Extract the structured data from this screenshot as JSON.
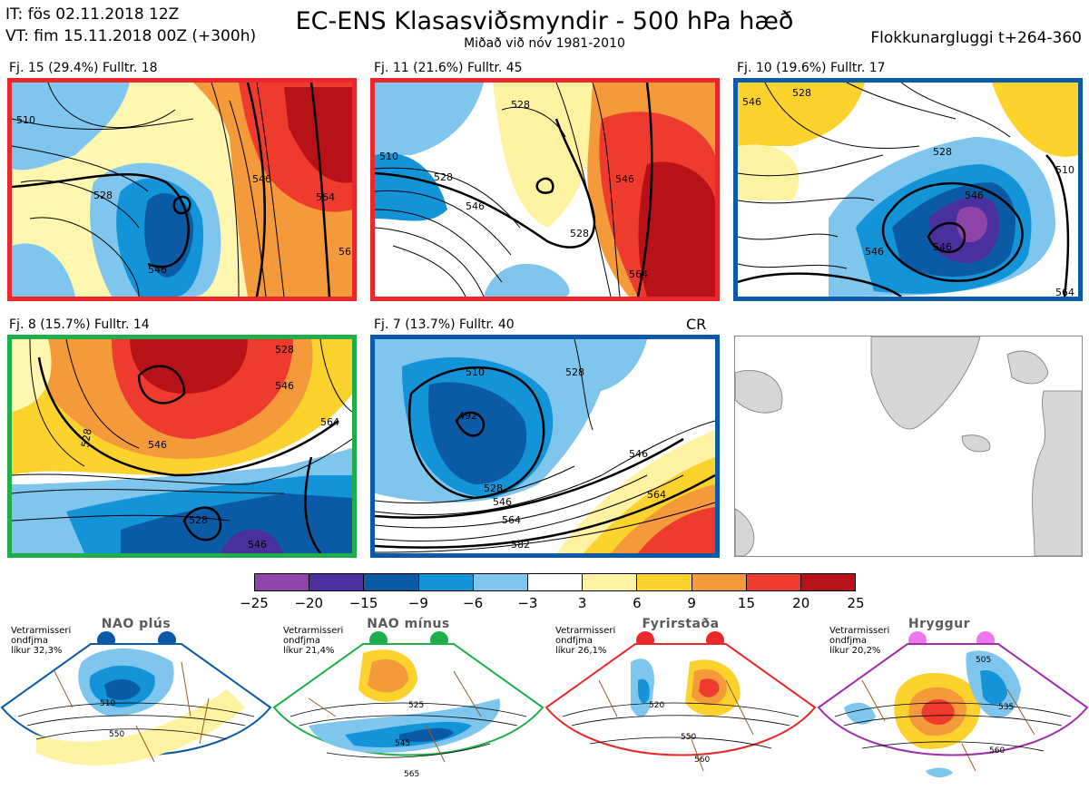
{
  "header": {
    "init_time": "IT: fös 02.11.2018 12Z",
    "valid_time": "VT: fim 15.11.2018 00Z  (+300h)",
    "title": "EC-ENS Klasasviðsmyndir - 500 hPa hæð",
    "subtitle": "Miðað við nóv 1981-2010",
    "window": "Flokkunargluggi t+264-360"
  },
  "panels": [
    {
      "label": "Fj. 15 (29.4%)   Fulltr. 18",
      "border_color": "#e8282b",
      "contour_labels": [
        "510",
        "528",
        "546",
        "546",
        "564",
        "56"
      ]
    },
    {
      "label": "Fj. 11 (21.6%)   Fulltr. 45",
      "border_color": "#e8282b",
      "contour_labels": [
        "528",
        "510",
        "528",
        "546",
        "546",
        "528",
        "564"
      ]
    },
    {
      "label": "Fj. 10 (19.6%)   Fulltr. 17",
      "border_color": "#0a5aa8",
      "contour_labels": [
        "546",
        "528",
        "528",
        "546",
        "546",
        "510",
        "546",
        "564"
      ]
    },
    {
      "label": "Fj. 8 (15.7%)   Fulltr. 14",
      "border_color": "#1fae4a",
      "contour_labels": [
        "528",
        "546",
        "528",
        "546",
        "528",
        "546",
        "564"
      ]
    },
    {
      "label": "Fj. 7 (13.7%)   Fulltr. 40",
      "border_color": "#0a5aa8",
      "contour_labels": [
        "510",
        "528",
        "492",
        "528",
        "546",
        "546",
        "564",
        "564",
        "582"
      ],
      "corner_text": "CR"
    }
  ],
  "legend": {
    "colors": [
      "#8e44a8",
      "#4a2f9e",
      "#0b5aa6",
      "#1393d8",
      "#7fc6ee",
      "#ffffff",
      "#fff2a0",
      "#fcd22c",
      "#f59a3a",
      "#ee3b2e",
      "#b71218"
    ],
    "ticks": [
      "−25",
      "−20",
      "−15",
      "−9",
      "−6",
      "−3",
      "3",
      "6",
      "9",
      "15",
      "20",
      "25"
    ]
  },
  "regimes": [
    {
      "title": "NAO plús",
      "color": "#0a5aa8",
      "note": "Vetrarmisseri\nondfjma\nlíkur 32,3%",
      "contour_labels": [
        "510",
        "550"
      ]
    },
    {
      "title": "NAO mínus",
      "color": "#1fae4a",
      "note": "Vetrarmisseri\nondfjma\nlíkur 21,4%",
      "contour_labels": [
        "525",
        "545",
        "565"
      ]
    },
    {
      "title": "Fyrirstaða",
      "color": "#e8282b",
      "note": "Vetrarmisseri\nondfjma\nlíkur 26,1%",
      "contour_labels": [
        "520",
        "550",
        "560"
      ]
    },
    {
      "title": "Hryggur",
      "color": "#a02ea8",
      "dot_color": "#ee77ee",
      "note": "Vetrarmisseri\nondfjma\nlíkur 20,2%",
      "contour_labels": [
        "505",
        "535",
        "560"
      ]
    }
  ]
}
